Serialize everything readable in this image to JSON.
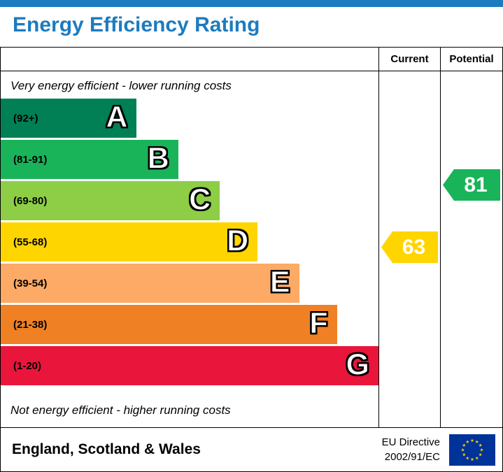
{
  "title": "Energy Efficiency Rating",
  "colors": {
    "header_blue": "#1d7bbf",
    "border": "#000000",
    "flag_blue": "#003399",
    "flag_star_yellow": "#ffcc00"
  },
  "table": {
    "current_header": "Current",
    "potential_header": "Potential"
  },
  "notes": {
    "top": "Very energy efficient - lower running costs",
    "bottom": "Not energy efficient - higher running costs"
  },
  "chart_data": {
    "type": "bar",
    "orientation": "horizontal",
    "title": "Energy Efficiency Rating",
    "bands": [
      {
        "letter": "A",
        "range": "(92+)",
        "color": "#008054",
        "width_pct": 36
      },
      {
        "letter": "B",
        "range": "(81-91)",
        "color": "#19b459",
        "width_pct": 47
      },
      {
        "letter": "C",
        "range": "(69-80)",
        "color": "#8dce46",
        "width_pct": 58
      },
      {
        "letter": "D",
        "range": "(55-68)",
        "color": "#ffd500",
        "width_pct": 68
      },
      {
        "letter": "E",
        "range": "(39-54)",
        "color": "#fcaa65",
        "width_pct": 79
      },
      {
        "letter": "F",
        "range": "(21-38)",
        "color": "#ef8023",
        "width_pct": 89
      },
      {
        "letter": "G",
        "range": "(1-20)",
        "color": "#e9153b",
        "width_pct": 100
      }
    ],
    "current": {
      "value": 63,
      "band": "D",
      "color": "#ffd500"
    },
    "potential": {
      "value": 81,
      "band": "B",
      "color": "#19b459"
    }
  },
  "footer": {
    "region": "England, Scotland & Wales",
    "directive_line1": "EU Directive",
    "directive_line2": "2002/91/EC"
  }
}
